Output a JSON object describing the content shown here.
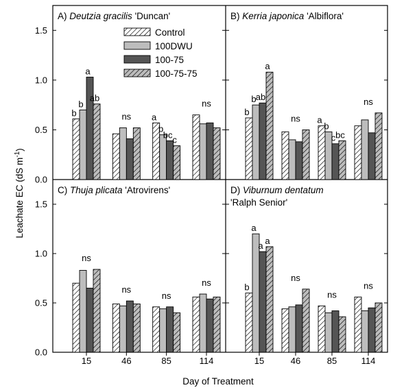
{
  "figure": {
    "ylabel_main": "Leachate EC (dS m",
    "ylabel_sup": "-1",
    "ylabel_end": ")",
    "xlabel": "Day of Treatment"
  },
  "legend": {
    "position": "top-left of panel A",
    "entries": [
      "Control",
      "100DWU",
      "100-75",
      "100-75-75"
    ]
  },
  "series_styles": [
    {
      "fill": "#ffffff",
      "pattern": "hatch"
    },
    {
      "fill": "#bdbdbd",
      "pattern": "none"
    },
    {
      "fill": "#555555",
      "pattern": "none"
    },
    {
      "fill": "#bdbdbd",
      "pattern": "hatch"
    }
  ],
  "chart_data": [
    {
      "type": "bar",
      "panel": "A",
      "title_prefix": "A)",
      "title_italic": "Deutzia gracilis",
      "title_suffix": "'Duncan'",
      "title_line2": "",
      "categories": [
        "15",
        "46",
        "85",
        "114"
      ],
      "ylim": [
        0,
        1.75
      ],
      "yticks": [
        "0.0",
        "0.5",
        "1.0",
        "1.5"
      ],
      "series": [
        {
          "name": "Control",
          "values": [
            0.61,
            0.46,
            0.57,
            0.65
          ]
        },
        {
          "name": "100DWU",
          "values": [
            0.7,
            0.52,
            0.45,
            0.56
          ]
        },
        {
          "name": "100-75",
          "values": [
            1.03,
            0.41,
            0.39,
            0.57
          ]
        },
        {
          "name": "100-75-75",
          "values": [
            0.76,
            0.52,
            0.34,
            0.52
          ]
        }
      ],
      "annotations": [
        {
          "category": 0,
          "labels": [
            "b",
            "b",
            "a",
            "ab"
          ]
        },
        {
          "category": 1,
          "labels": [
            "ns"
          ]
        },
        {
          "category": 2,
          "labels": [
            "a",
            "b",
            "bc",
            "c"
          ]
        },
        {
          "category": 3,
          "labels": [
            "ns"
          ]
        }
      ]
    },
    {
      "type": "bar",
      "panel": "B",
      "title_prefix": "B)",
      "title_italic": "Kerria japonica",
      "title_suffix": "'Albiflora'",
      "title_line2": "",
      "categories": [
        "15",
        "46",
        "85",
        "114"
      ],
      "ylim": [
        0,
        1.75
      ],
      "yticks": [],
      "series": [
        {
          "name": "Control",
          "values": [
            0.62,
            0.48,
            0.54,
            0.54
          ]
        },
        {
          "name": "100DWU",
          "values": [
            0.75,
            0.4,
            0.48,
            0.6
          ]
        },
        {
          "name": "100-75",
          "values": [
            0.77,
            0.38,
            0.36,
            0.47
          ]
        },
        {
          "name": "100-75-75",
          "values": [
            1.08,
            0.5,
            0.39,
            0.67
          ]
        }
      ],
      "annotations": [
        {
          "category": 0,
          "labels": [
            "b",
            "b",
            "ab",
            "a"
          ]
        },
        {
          "category": 1,
          "labels": [
            "ns"
          ]
        },
        {
          "category": 2,
          "labels": [
            "a",
            "b",
            "c",
            "bc"
          ]
        },
        {
          "category": 3,
          "labels": [
            "ns"
          ]
        }
      ]
    },
    {
      "type": "bar",
      "panel": "C",
      "title_prefix": "C)",
      "title_italic": "Thuja plicata",
      "title_suffix": "'Atrovirens'",
      "title_line2": "",
      "categories": [
        "15",
        "46",
        "85",
        "114"
      ],
      "ylim": [
        0,
        1.75
      ],
      "yticks": [
        "0.0",
        "0.5",
        "1.0",
        "1.5"
      ],
      "series": [
        {
          "name": "Control",
          "values": [
            0.7,
            0.49,
            0.46,
            0.56
          ]
        },
        {
          "name": "100DWU",
          "values": [
            0.83,
            0.47,
            0.44,
            0.59
          ]
        },
        {
          "name": "100-75",
          "values": [
            0.65,
            0.52,
            0.46,
            0.54
          ]
        },
        {
          "name": "100-75-75",
          "values": [
            0.84,
            0.49,
            0.4,
            0.56
          ]
        }
      ],
      "annotations": [
        {
          "category": 0,
          "labels": [
            "ns"
          ]
        },
        {
          "category": 1,
          "labels": [
            "ns"
          ]
        },
        {
          "category": 2,
          "labels": [
            "ns"
          ]
        },
        {
          "category": 3,
          "labels": [
            "ns"
          ]
        }
      ]
    },
    {
      "type": "bar",
      "panel": "D",
      "title_prefix": "D)",
      "title_italic": "Viburnum dentatum",
      "title_suffix": "",
      "title_line2": "'Ralph Senior'",
      "categories": [
        "15",
        "46",
        "85",
        "114"
      ],
      "ylim": [
        0,
        1.75
      ],
      "yticks": [],
      "series": [
        {
          "name": "Control",
          "values": [
            0.6,
            0.44,
            0.47,
            0.56
          ]
        },
        {
          "name": "100DWU",
          "values": [
            1.2,
            0.46,
            0.4,
            0.42
          ]
        },
        {
          "name": "100-75",
          "values": [
            1.02,
            0.48,
            0.42,
            0.45
          ]
        },
        {
          "name": "100-75-75",
          "values": [
            1.07,
            0.64,
            0.36,
            0.5
          ]
        }
      ],
      "annotations": [
        {
          "category": 0,
          "labels": [
            "b",
            "a",
            "a",
            "a"
          ]
        },
        {
          "category": 1,
          "labels": [
            "ns"
          ]
        },
        {
          "category": 2,
          "labels": [
            "ns"
          ]
        },
        {
          "category": 3,
          "labels": [
            "ns"
          ]
        }
      ]
    }
  ]
}
